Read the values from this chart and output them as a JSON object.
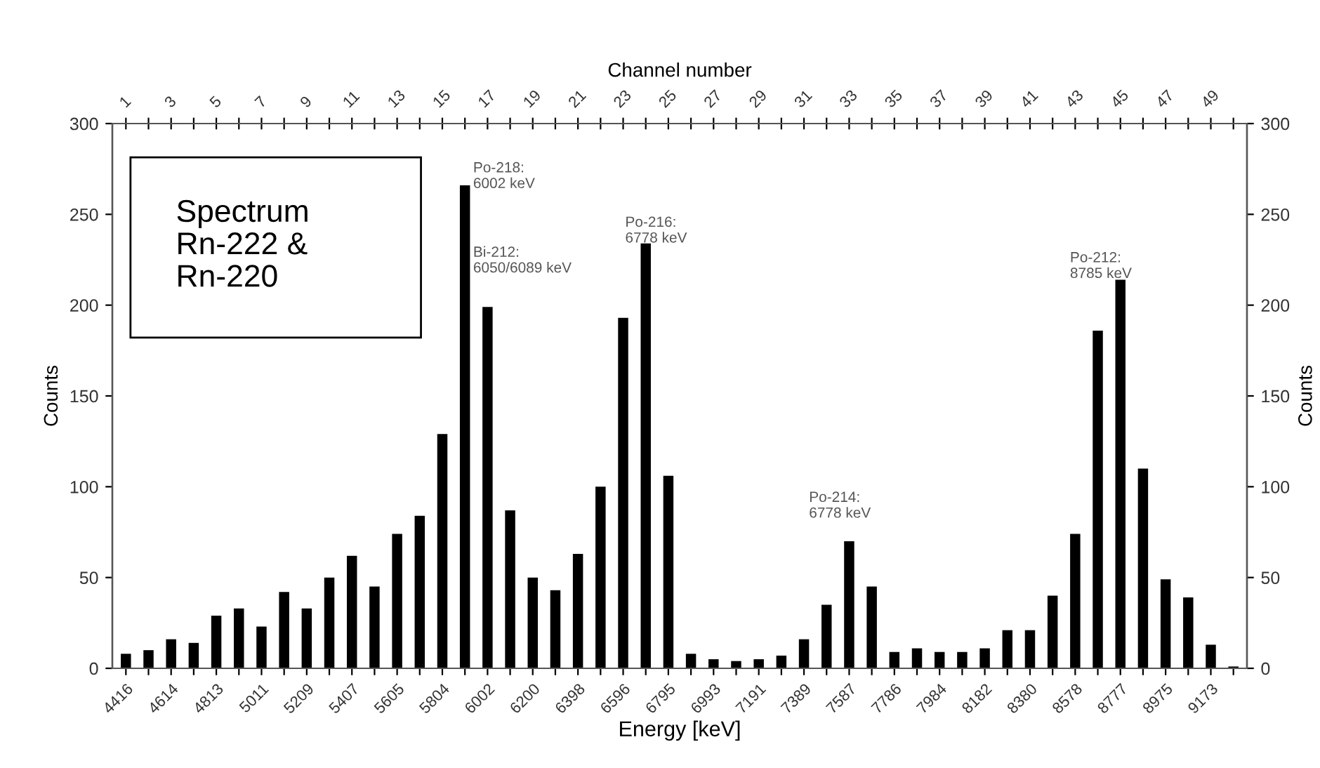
{
  "chart_data": {
    "type": "bar",
    "title": "Spectrum\nRn-222 &\nRn-220",
    "xlabel": "Energy [keV]",
    "ylabel": "Counts",
    "y2label": "Counts",
    "x2label": "Channel number",
    "categories": [
      "4416",
      null,
      "4614",
      null,
      "4813",
      null,
      "5011",
      null,
      "5209",
      null,
      "5407",
      null,
      "5605",
      null,
      "5804",
      null,
      "6002",
      null,
      "6200",
      null,
      "6398",
      null,
      "6596",
      null,
      "6795",
      null,
      "6993",
      null,
      "7191",
      null,
      "7389",
      null,
      "7587",
      null,
      "7786",
      null,
      "7984",
      null,
      "8182",
      null,
      "8380",
      null,
      "8578",
      null,
      "8777",
      null,
      "8975",
      null,
      "9173",
      null
    ],
    "values": [
      8,
      10,
      16,
      14,
      29,
      33,
      23,
      42,
      33,
      50,
      62,
      45,
      74,
      84,
      129,
      266,
      199,
      87,
      50,
      43,
      63,
      100,
      193,
      234,
      106,
      8,
      5,
      4,
      5,
      7,
      16,
      35,
      70,
      45,
      9,
      11,
      9,
      9,
      11,
      21,
      21,
      40,
      74,
      186,
      214,
      110,
      49,
      39,
      13,
      1
    ],
    "color": "#000000",
    "ylim": [
      0,
      300
    ],
    "yticks": [
      0,
      50,
      100,
      150,
      200,
      250,
      300
    ],
    "y2lim": [
      0,
      300
    ],
    "y2ticks": [
      0,
      50,
      100,
      150,
      200,
      250,
      300
    ],
    "x2lim": [
      0.4,
      50.6
    ],
    "x2ticks": [
      1,
      {
        "value": 2,
        "label": null
      },
      3,
      {
        "value": 4,
        "label": null
      },
      5,
      {
        "value": 6,
        "label": null
      },
      7,
      {
        "value": 8,
        "label": null
      },
      9,
      {
        "value": 10,
        "label": null
      },
      11,
      {
        "value": 12,
        "label": null
      },
      13,
      {
        "value": 14,
        "label": null
      },
      15,
      {
        "value": 16,
        "label": null
      },
      17,
      {
        "value": 18,
        "label": null
      },
      19,
      {
        "value": 20,
        "label": null
      },
      21,
      {
        "value": 22,
        "label": null
      },
      23,
      {
        "value": 24,
        "label": null
      },
      25,
      {
        "value": 26,
        "label": null
      },
      27,
      {
        "value": 28,
        "label": null
      },
      29,
      {
        "value": 30,
        "label": null
      },
      31,
      {
        "value": 32,
        "label": null
      },
      33,
      {
        "value": 34,
        "label": null
      },
      35,
      {
        "value": 36,
        "label": null
      },
      37,
      {
        "value": 38,
        "label": null
      },
      39,
      {
        "value": 40,
        "label": null
      },
      41,
      {
        "value": 42,
        "label": null
      },
      43,
      {
        "value": 44,
        "label": null
      },
      45,
      {
        "value": 46,
        "label": null
      },
      47,
      {
        "value": 48,
        "label": null
      },
      49,
      {
        "value": 50,
        "label": null
      }
    ],
    "annotations": [
      "Po-218:\n6002 keV",
      "Bi-212:\n6050/6089 keV",
      "Po-216:\n6778 keV",
      "Po-214:\n6778 keV",
      "Po-212:\n8785 keV"
    ],
    "grid": false,
    "legend": false
  }
}
